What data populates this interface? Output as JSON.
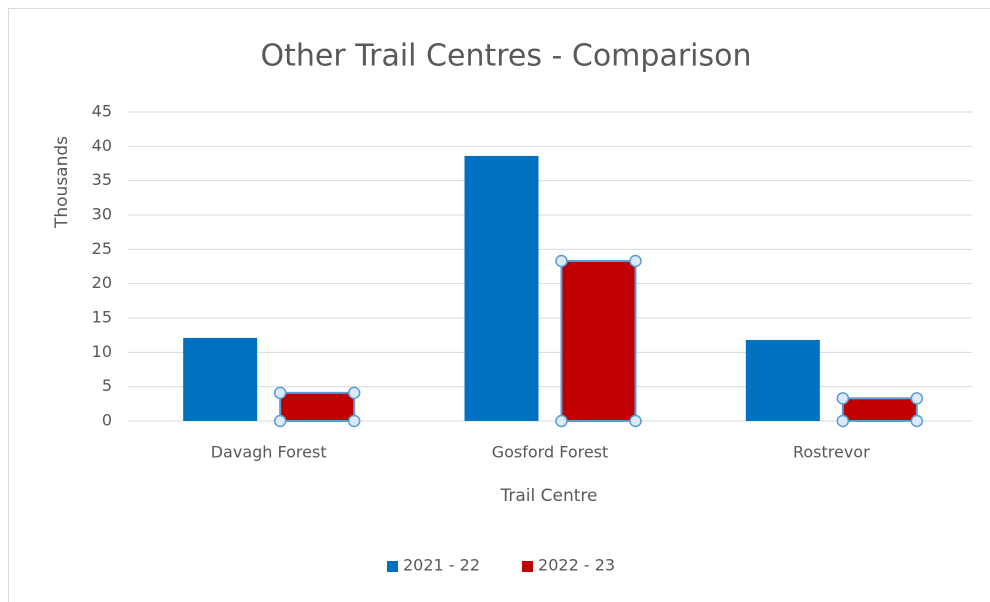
{
  "chart_data": {
    "type": "bar",
    "title": "Other Trail Centres - Comparison",
    "x_label": "Trail Centre",
    "y_label": "Thousands",
    "categories": [
      "Davagh Forest",
      "Gosford Forest",
      "Rostrevor"
    ],
    "series": [
      {
        "name": "2021 - 22",
        "color": "#0070c0",
        "values": [
          12.1,
          38.6,
          11.8
        ]
      },
      {
        "name": "2022 - 23",
        "color": "#c00000",
        "values": [
          4.1,
          23.3,
          3.3
        ]
      }
    ],
    "ylim": [
      0,
      45
    ],
    "yticks": [
      0,
      5,
      10,
      15,
      20,
      25,
      30,
      35,
      40,
      45
    ],
    "grid": true,
    "legend": "bottom"
  }
}
